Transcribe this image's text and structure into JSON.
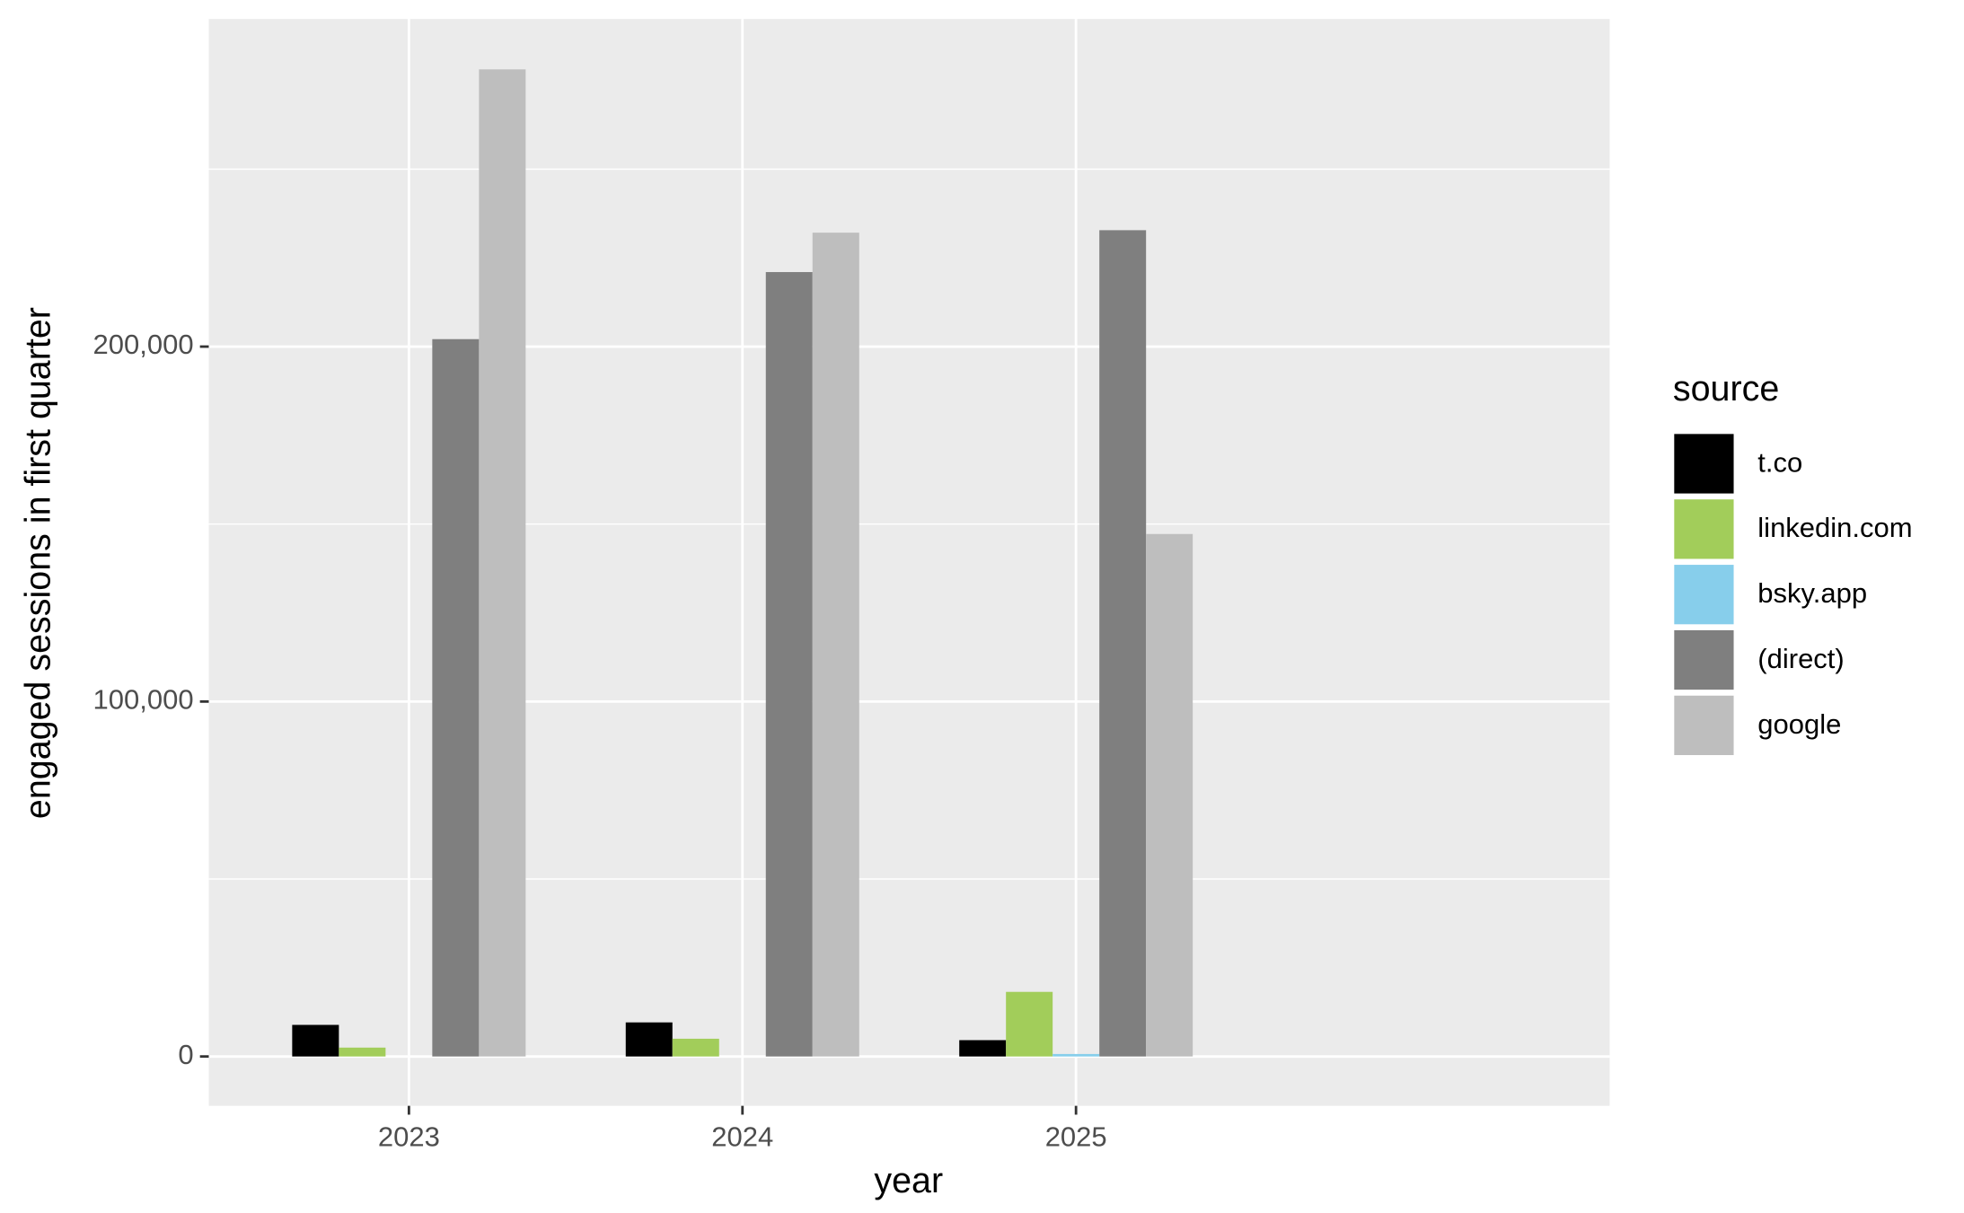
{
  "chart_data": {
    "type": "bar",
    "x_label": "year",
    "y_label": "engaged sessions in first quarter",
    "categories": [
      "2023",
      "2024",
      "2025"
    ],
    "series": [
      {
        "name": "t.co",
        "color": "#000000",
        "values": [
          8900,
          9600,
          4600
        ]
      },
      {
        "name": "linkedin.com",
        "color": "#a2cd5a",
        "values": [
          2500,
          5000,
          18200
        ]
      },
      {
        "name": "bsky.app",
        "color": "#87ceeb",
        "values": [
          null,
          null,
          700
        ]
      },
      {
        "name": "(direct)",
        "color": "#7f7f7f",
        "values": [
          202100,
          221000,
          232800
        ]
      },
      {
        "name": "google",
        "color": "#bebebe",
        "values": [
          278100,
          232100,
          147200
        ]
      }
    ],
    "ylim": [
      -13900,
      292300
    ],
    "yticks": [
      0,
      {
        "value": 100000,
        "label": "100,000"
      },
      {
        "value": 200000,
        "label": "200,000"
      }
    ],
    "grid": true,
    "legend_title": "source",
    "legend_position": "right"
  }
}
